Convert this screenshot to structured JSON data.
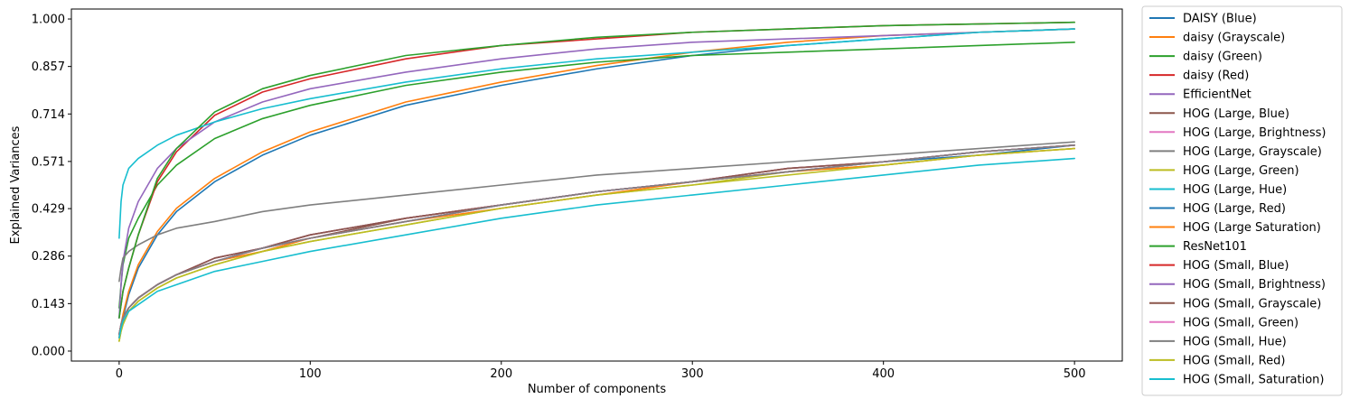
{
  "chart_data": {
    "type": "line",
    "xlabel": "Number of components",
    "ylabel": "Explained Variances",
    "xlim": [
      -25,
      525
    ],
    "ylim": [
      -0.03,
      1.03
    ],
    "xticks": [
      0,
      100,
      200,
      300,
      400,
      500
    ],
    "xtick_labels": [
      "0",
      "100",
      "200",
      "300",
      "400",
      "500"
    ],
    "yticks": [
      0.0,
      0.143,
      0.286,
      0.429,
      0.571,
      0.714,
      0.857,
      1.0
    ],
    "ytick_labels": [
      "0.000",
      "0.143",
      "0.286",
      "0.429",
      "0.571",
      "0.714",
      "0.857",
      "1.000"
    ],
    "grid": false,
    "legend_position": "outside-right",
    "x": [
      0,
      1,
      2,
      5,
      10,
      20,
      30,
      50,
      75,
      100,
      150,
      200,
      250,
      300,
      350,
      400,
      450,
      500
    ],
    "series": [
      {
        "name": "DAISY (Blue)",
        "color": "#1f77b4",
        "values": [
          0.04,
          0.07,
          0.1,
          0.17,
          0.25,
          0.35,
          0.42,
          0.51,
          0.59,
          0.65,
          0.74,
          0.8,
          0.85,
          0.89,
          0.92,
          0.94,
          0.96,
          0.97
        ]
      },
      {
        "name": "daisy (Grayscale)",
        "color": "#ff7f0e",
        "values": [
          0.04,
          0.08,
          0.11,
          0.18,
          0.26,
          0.36,
          0.43,
          0.52,
          0.6,
          0.66,
          0.75,
          0.81,
          0.86,
          0.9,
          0.93,
          0.95,
          0.96,
          0.97
        ]
      },
      {
        "name": "daisy (Green)",
        "color": "#2ca02c",
        "values": [
          0.13,
          0.2,
          0.26,
          0.34,
          0.4,
          0.5,
          0.56,
          0.64,
          0.7,
          0.74,
          0.8,
          0.84,
          0.87,
          0.89,
          0.9,
          0.91,
          0.92,
          0.93
        ]
      },
      {
        "name": "daisy (Red)",
        "color": "#d62728",
        "values": [
          0.1,
          0.14,
          0.18,
          0.25,
          0.35,
          0.51,
          0.6,
          0.71,
          0.78,
          0.82,
          0.88,
          0.92,
          0.94,
          0.96,
          0.97,
          0.98,
          0.985,
          0.99
        ]
      },
      {
        "name": "EfficientNet",
        "color": "#9467bd",
        "values": [
          0.1,
          0.2,
          0.27,
          0.37,
          0.45,
          0.55,
          0.61,
          0.69,
          0.75,
          0.79,
          0.84,
          0.88,
          0.91,
          0.93,
          0.94,
          0.95,
          0.96,
          0.97
        ]
      },
      {
        "name": "HOG (Large, Blue)",
        "color": "#8c564b",
        "values": [
          0.05,
          0.08,
          0.1,
          0.13,
          0.16,
          0.2,
          0.23,
          0.27,
          0.31,
          0.34,
          0.4,
          0.44,
          0.48,
          0.51,
          0.54,
          0.57,
          0.6,
          0.62
        ]
      },
      {
        "name": "HOG (Large, Brightness)",
        "color": "#e377c2",
        "values": [
          0.05,
          0.08,
          0.1,
          0.13,
          0.16,
          0.2,
          0.23,
          0.27,
          0.31,
          0.34,
          0.39,
          0.44,
          0.48,
          0.51,
          0.54,
          0.57,
          0.6,
          0.62
        ]
      },
      {
        "name": "HOG (Large, Grayscale)",
        "color": "#7f7f7f",
        "values": [
          0.21,
          0.25,
          0.28,
          0.3,
          0.32,
          0.35,
          0.37,
          0.39,
          0.42,
          0.44,
          0.47,
          0.5,
          0.53,
          0.55,
          0.57,
          0.59,
          0.61,
          0.63
        ]
      },
      {
        "name": "HOG (Large, Green)",
        "color": "#bcbd22",
        "values": [
          0.03,
          0.06,
          0.08,
          0.12,
          0.15,
          0.19,
          0.22,
          0.26,
          0.3,
          0.33,
          0.38,
          0.43,
          0.47,
          0.5,
          0.54,
          0.56,
          0.59,
          0.61
        ]
      },
      {
        "name": "HOG (Large, Hue)",
        "color": "#17becf",
        "values": [
          0.34,
          0.45,
          0.5,
          0.55,
          0.58,
          0.62,
          0.65,
          0.69,
          0.73,
          0.76,
          0.81,
          0.85,
          0.88,
          0.9,
          0.92,
          0.94,
          0.96,
          0.97
        ]
      },
      {
        "name": "HOG (Large, Red)",
        "color": "#1f77b4",
        "values": [
          0.05,
          0.08,
          0.1,
          0.13,
          0.16,
          0.2,
          0.23,
          0.27,
          0.31,
          0.34,
          0.39,
          0.44,
          0.48,
          0.51,
          0.54,
          0.57,
          0.59,
          0.62
        ]
      },
      {
        "name": "HOG (Large Saturation)",
        "color": "#ff7f0e",
        "values": [
          0.05,
          0.08,
          0.1,
          0.13,
          0.16,
          0.2,
          0.23,
          0.27,
          0.3,
          0.34,
          0.39,
          0.43,
          0.47,
          0.51,
          0.54,
          0.56,
          0.59,
          0.61
        ]
      },
      {
        "name": "ResNet101",
        "color": "#2ca02c",
        "values": [
          0.1,
          0.14,
          0.18,
          0.25,
          0.35,
          0.52,
          0.61,
          0.72,
          0.79,
          0.83,
          0.89,
          0.92,
          0.945,
          0.96,
          0.97,
          0.98,
          0.985,
          0.99
        ]
      },
      {
        "name": "HOG (Small, Blue)",
        "color": "#d62728",
        "values": [
          0.05,
          0.08,
          0.1,
          0.13,
          0.16,
          0.2,
          0.23,
          0.28,
          0.31,
          0.35,
          0.4,
          0.44,
          0.48,
          0.51,
          0.55,
          0.57,
          0.6,
          0.62
        ]
      },
      {
        "name": "HOG (Small, Brightness)",
        "color": "#9467bd",
        "values": [
          0.05,
          0.08,
          0.1,
          0.13,
          0.16,
          0.2,
          0.23,
          0.28,
          0.31,
          0.35,
          0.4,
          0.44,
          0.48,
          0.51,
          0.55,
          0.57,
          0.6,
          0.62
        ]
      },
      {
        "name": "HOG (Small, Grayscale)",
        "color": "#8c564b",
        "values": [
          0.05,
          0.08,
          0.1,
          0.13,
          0.16,
          0.2,
          0.23,
          0.28,
          0.31,
          0.35,
          0.4,
          0.44,
          0.48,
          0.51,
          0.55,
          0.57,
          0.6,
          0.62
        ]
      },
      {
        "name": "HOG (Small, Green)",
        "color": "#e377c2",
        "values": [
          0.05,
          0.08,
          0.1,
          0.13,
          0.16,
          0.2,
          0.23,
          0.27,
          0.31,
          0.34,
          0.39,
          0.44,
          0.48,
          0.51,
          0.54,
          0.57,
          0.6,
          0.62
        ]
      },
      {
        "name": "HOG (Small, Hue)",
        "color": "#7f7f7f",
        "values": [
          0.05,
          0.08,
          0.1,
          0.13,
          0.16,
          0.2,
          0.23,
          0.27,
          0.31,
          0.34,
          0.39,
          0.44,
          0.48,
          0.51,
          0.54,
          0.57,
          0.6,
          0.62
        ]
      },
      {
        "name": "HOG (Small, Red)",
        "color": "#bcbd22",
        "values": [
          0.03,
          0.06,
          0.08,
          0.12,
          0.15,
          0.19,
          0.22,
          0.26,
          0.3,
          0.33,
          0.38,
          0.43,
          0.47,
          0.5,
          0.53,
          0.56,
          0.59,
          0.61
        ]
      },
      {
        "name": "HOG (Small, Saturation)",
        "color": "#17becf",
        "values": [
          0.04,
          0.07,
          0.09,
          0.12,
          0.14,
          0.18,
          0.2,
          0.24,
          0.27,
          0.3,
          0.35,
          0.4,
          0.44,
          0.47,
          0.5,
          0.53,
          0.56,
          0.58
        ]
      }
    ]
  }
}
